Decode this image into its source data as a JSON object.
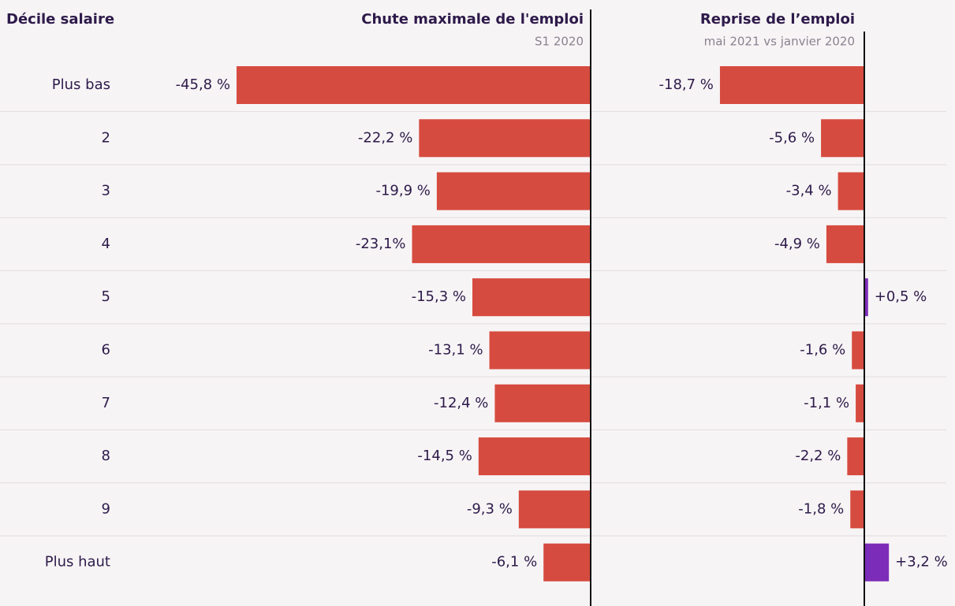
{
  "chart_data": [
    {
      "type": "bar",
      "orientation": "horizontal",
      "category_label": "Décile salaire",
      "title": "Chute maximale de l'emploi",
      "subtitle": "S1 2020",
      "categories": [
        "Plus bas",
        "2",
        "3",
        "4",
        "5",
        "6",
        "7",
        "8",
        "9",
        "Plus haut"
      ],
      "values": [
        -45.8,
        -22.2,
        -19.9,
        -23.1,
        -15.3,
        -13.1,
        -12.4,
        -14.5,
        -9.3,
        -6.1
      ],
      "value_labels": [
        "-45,8 %",
        "-22,2 %",
        "-19,9 %",
        "-23,1%",
        "-15,3 %",
        "-13,1 %",
        "-12,4 %",
        "-14,5 %",
        "-9,3 %",
        "-6,1 %"
      ],
      "xlim": [
        -46,
        0
      ],
      "color": "#d64b3f",
      "positive_color": "#7b2cb8"
    },
    {
      "type": "bar",
      "orientation": "horizontal",
      "title": "Reprise de l’emploi",
      "subtitle": "mai 2021 vs janvier 2020",
      "values": [
        -18.7,
        -5.6,
        -3.4,
        -4.9,
        0.5,
        -1.6,
        -1.1,
        -2.2,
        -1.8,
        3.2
      ],
      "value_labels": [
        "-18,7 %",
        "-5,6 %",
        "-3,4 %",
        "-4,9 %",
        "+0,5 %",
        "-1,6 %",
        "-1,1 %",
        "-2,2 %",
        "-1,8 %",
        "+3,2 %"
      ],
      "xlim": [
        -19,
        4
      ],
      "color": "#d64b3f",
      "positive_color": "#7b2cb8"
    }
  ]
}
